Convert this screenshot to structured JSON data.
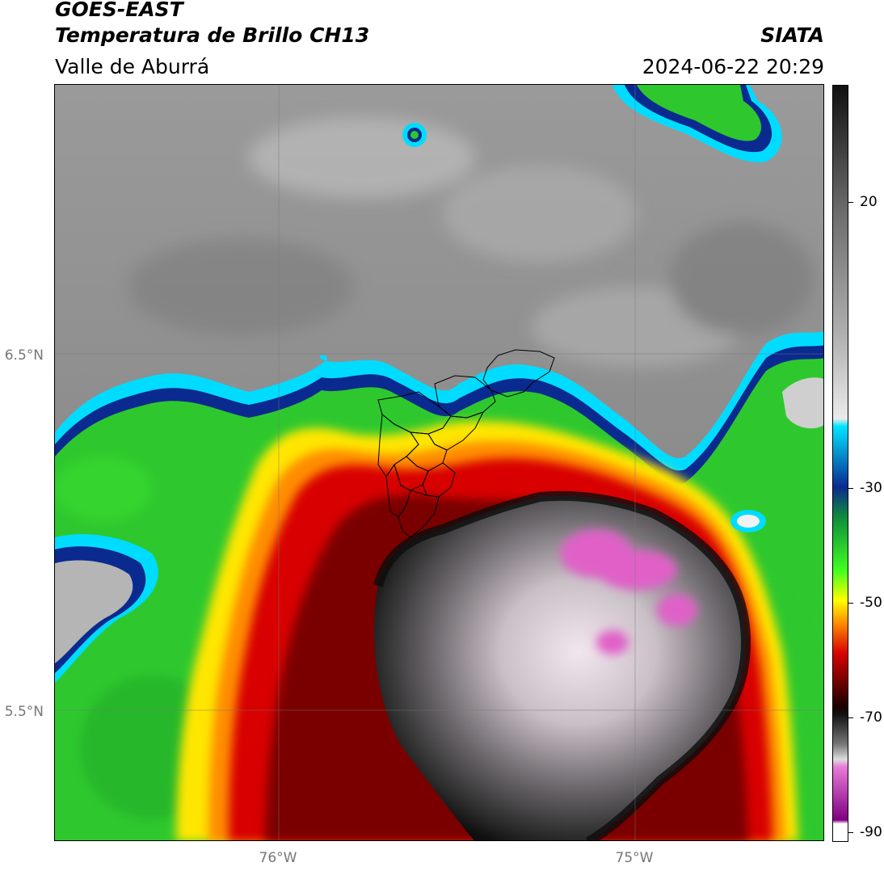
{
  "header": {
    "satellite": "GOES-EAST",
    "product": "Temperatura de Brillo CH13",
    "region": "Valle de Aburrá",
    "organization": "SIATA",
    "datetime": "2024-06-22 20:29"
  },
  "map": {
    "lat_labels": [
      "6.5°N",
      "5.5°N"
    ],
    "lon_labels": [
      "76°W",
      "75°W"
    ]
  },
  "colorbar": {
    "tick_labels": [
      "20",
      "-30",
      "-50",
      "-70",
      "-90"
    ],
    "colors": {
      "warm_gray_dark": "#1a1a1a",
      "warm_gray_light": "#e8e8e8",
      "cyan": "#00e5ff",
      "blue": "#0a2a8f",
      "green": "#2ec82e",
      "yellow": "#ffff00",
      "orange": "#ff8c00",
      "red": "#d80000",
      "dark_red": "#4a0000",
      "pink": "#e060c8",
      "purple": "#800080"
    }
  }
}
